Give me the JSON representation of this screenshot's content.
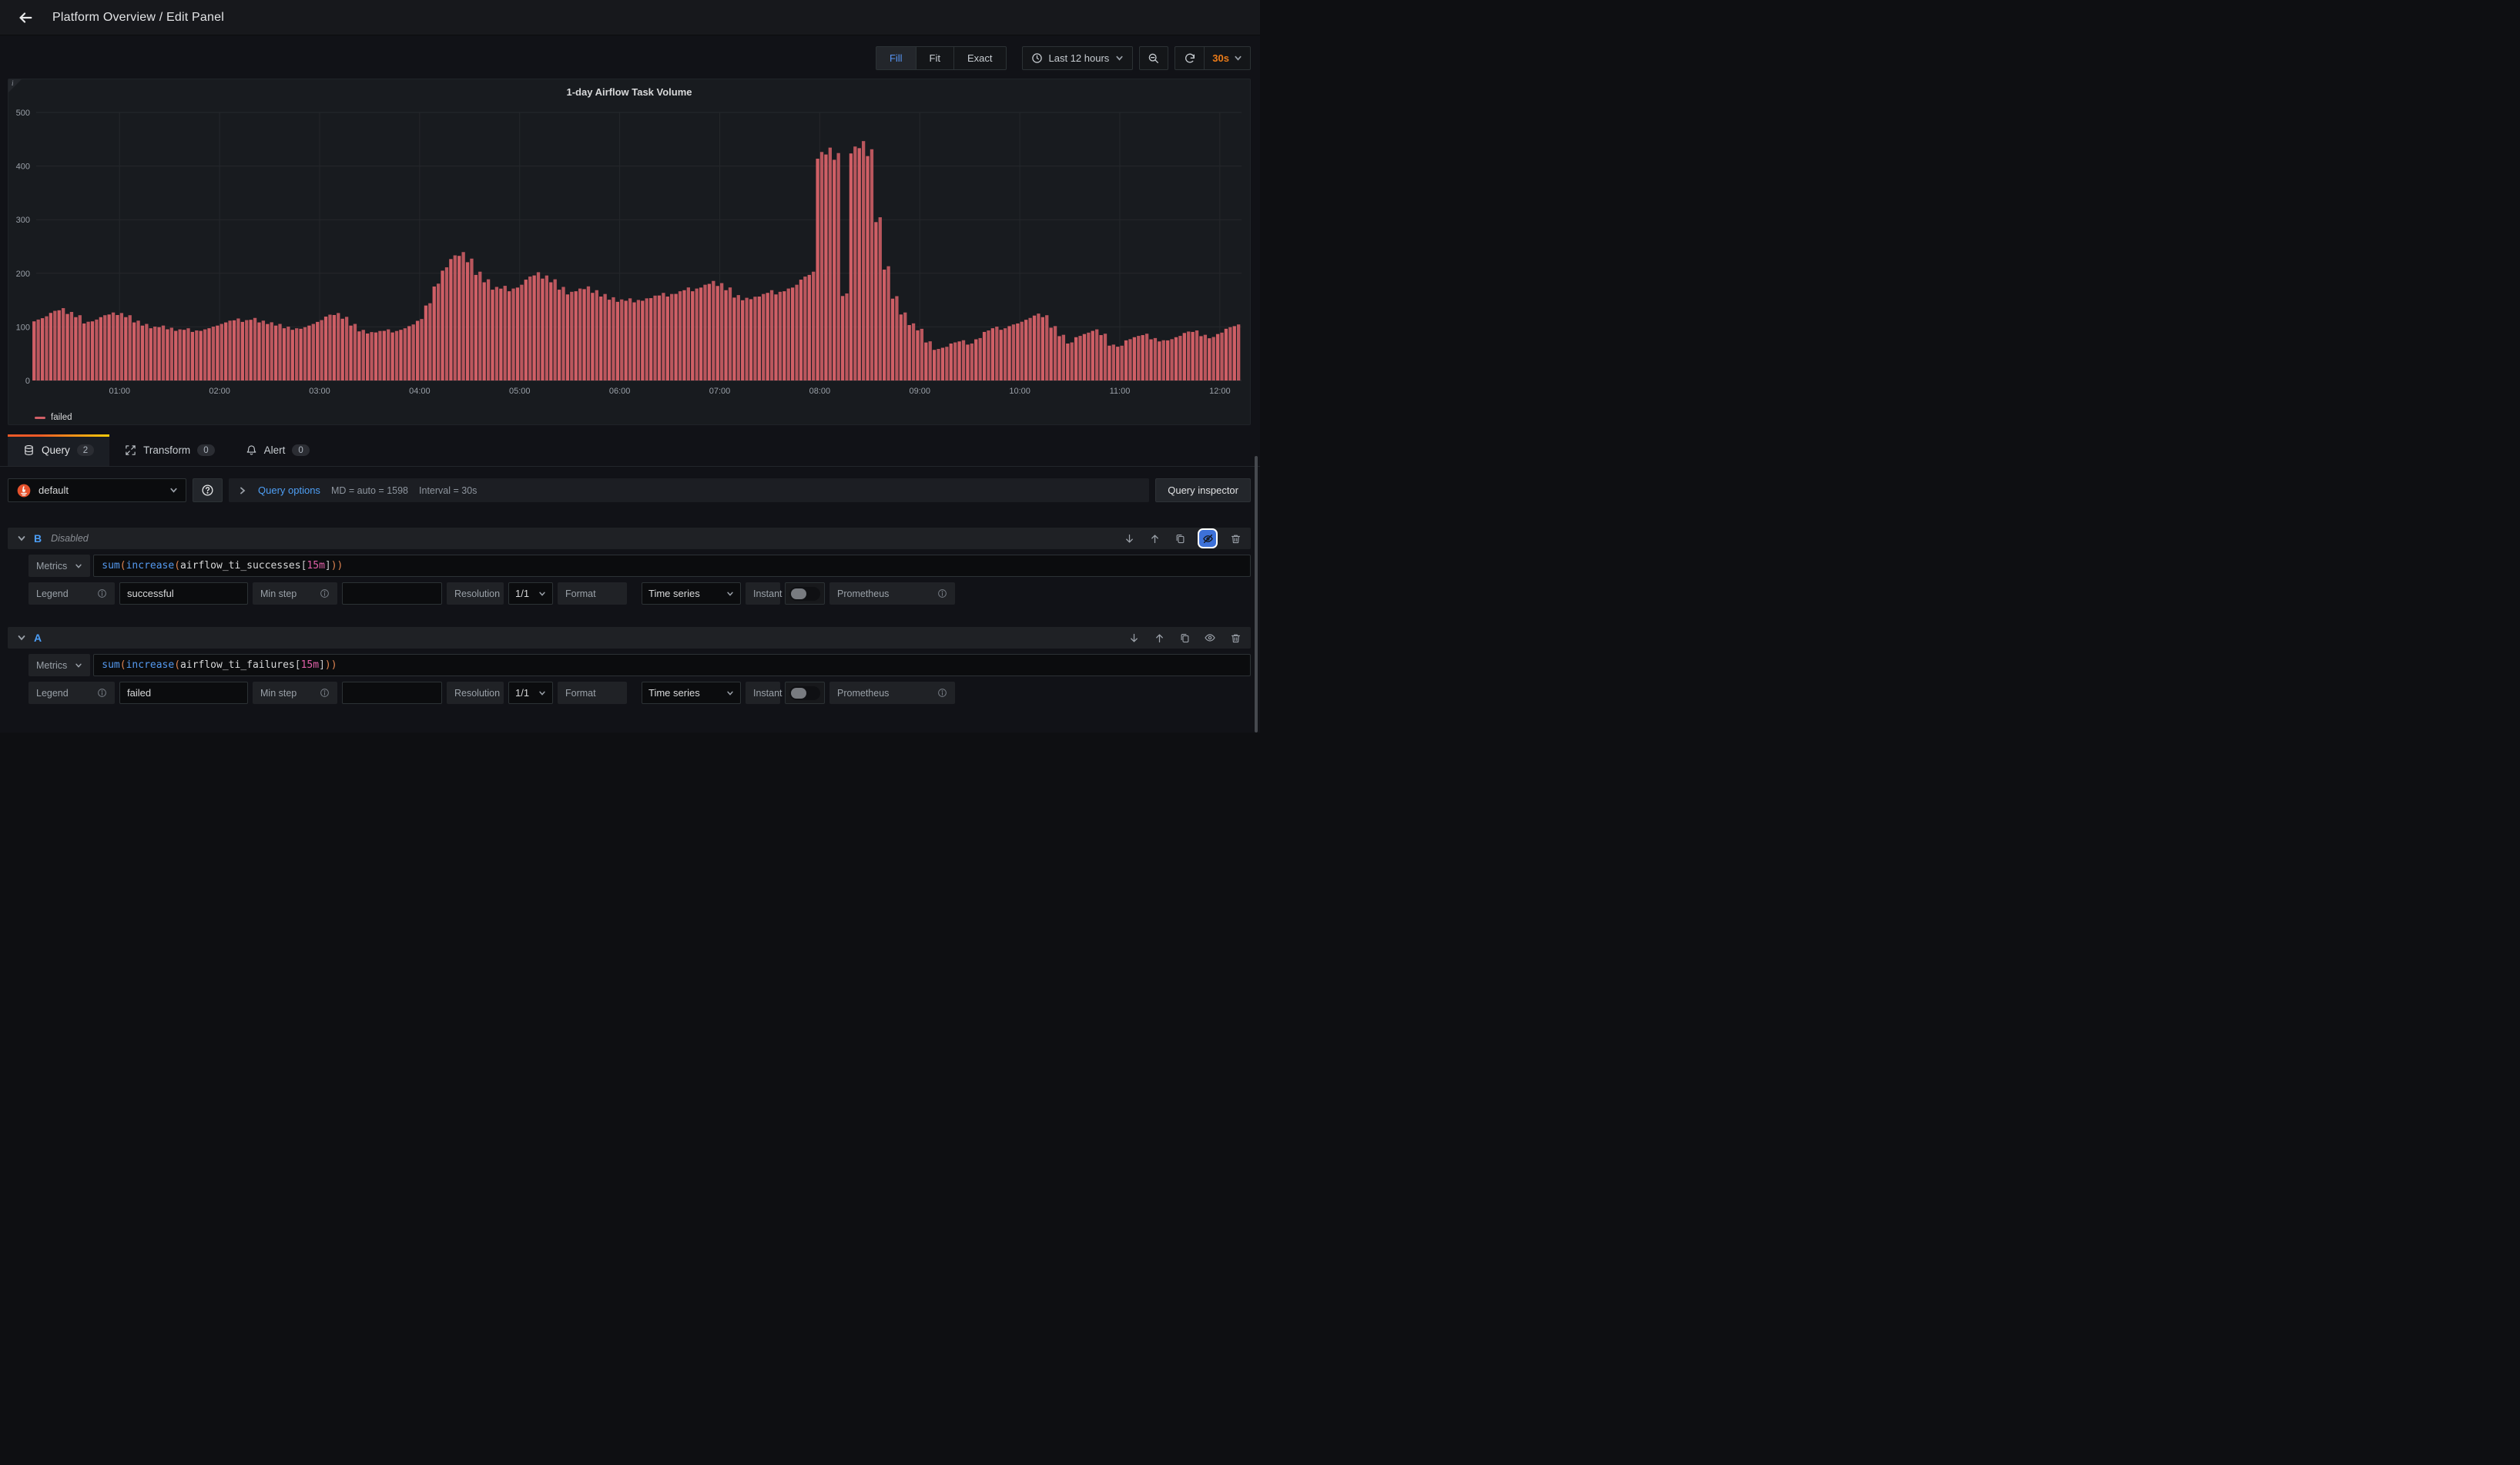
{
  "topbar": {
    "title": "Platform Overview / Edit Panel"
  },
  "toolbar": {
    "display_modes": [
      "Fill",
      "Fit",
      "Exact"
    ],
    "active_mode": "Fill",
    "time_range": "Last 12 hours",
    "refresh_interval": "30s"
  },
  "panel": {
    "title": "1-day Airflow Task Volume",
    "legend": "failed"
  },
  "chart_data": {
    "type": "bar",
    "title": "1-day Airflow Task Volume",
    "series_name": "failed",
    "bar_color": "#d05f66",
    "ylim": [
      0,
      500
    ],
    "y_ticks": [
      0,
      100,
      200,
      300,
      400,
      500
    ],
    "x_ticks": [
      "01:00",
      "02:00",
      "03:00",
      "04:00",
      "05:00",
      "06:00",
      "07:00",
      "08:00",
      "09:00",
      "10:00",
      "11:00",
      "12:00"
    ],
    "x_start_minutes": 10,
    "x_step_minutes": 5,
    "x_domain": [
      10,
      733
    ],
    "values": [
      112,
      118,
      128,
      133,
      126,
      120,
      108,
      112,
      120,
      125,
      124,
      120,
      110,
      104,
      99,
      101,
      97,
      94,
      96,
      92,
      94,
      99,
      104,
      110,
      114,
      111,
      115,
      110,
      107,
      104,
      99,
      96,
      98,
      104,
      111,
      121,
      124,
      117,
      104,
      93,
      89,
      91,
      94,
      91,
      96,
      103,
      113,
      142,
      178,
      208,
      230,
      236,
      224,
      200,
      186,
      172,
      174,
      169,
      176,
      191,
      199,
      193,
      186,
      172,
      163,
      169,
      173,
      166,
      159,
      153,
      149,
      151,
      148,
      151,
      156,
      161,
      159,
      164,
      171,
      169,
      176,
      183,
      179,
      171,
      157,
      152,
      154,
      159,
      166,
      163,
      169,
      176,
      191,
      200,
      420,
      428,
      418,
      160,
      430,
      440,
      425,
      300,
      210,
      155,
      125,
      105,
      95,
      72,
      58,
      62,
      70,
      74,
      68,
      78,
      92,
      99,
      96,
      103,
      108,
      115,
      123,
      120,
      100,
      84,
      70,
      82,
      88,
      94,
      86,
      66,
      64,
      76,
      82,
      86,
      78,
      74,
      76,
      82,
      90,
      92,
      84,
      80,
      88,
      98,
      103
    ]
  },
  "tabs": [
    {
      "label": "Query",
      "count": "2"
    },
    {
      "label": "Transform",
      "count": "0"
    },
    {
      "label": "Alert",
      "count": "0"
    }
  ],
  "datasource_row": {
    "name": "default",
    "query_options_label": "Query options",
    "md_text": "MD = auto = 1598",
    "interval_text": "Interval = 30s",
    "inspector_label": "Query inspector"
  },
  "option_labels": {
    "metrics": "Metrics",
    "legend": "Legend",
    "min_step": "Min step",
    "resolution": "Resolution",
    "format": "Format",
    "instant": "Instant",
    "datasource": "Prometheus"
  },
  "queries": [
    {
      "ref": "B",
      "state": "Disabled",
      "legend_value": "successful",
      "resolution_value": "1/1",
      "format_value": "Time series",
      "expr": [
        {
          "t": "sum",
          "c": "kw"
        },
        {
          "t": "(",
          "c": "pa"
        },
        {
          "t": "increase",
          "c": "kw"
        },
        {
          "t": "(",
          "c": "pa"
        },
        {
          "t": "airflow_ti_successes",
          "c": "id"
        },
        {
          "t": "[",
          "c": "br"
        },
        {
          "t": "15m",
          "c": "du"
        },
        {
          "t": "]",
          "c": "br"
        },
        {
          "t": "))",
          "c": "pa"
        }
      ]
    },
    {
      "ref": "A",
      "state": "",
      "legend_value": "failed",
      "resolution_value": "1/1",
      "format_value": "Time series",
      "expr": [
        {
          "t": "sum",
          "c": "kw"
        },
        {
          "t": "(",
          "c": "pa"
        },
        {
          "t": "increase",
          "c": "kw"
        },
        {
          "t": "(",
          "c": "pa"
        },
        {
          "t": "airflow_ti_failures",
          "c": "id"
        },
        {
          "t": "[",
          "c": "br"
        },
        {
          "t": "15m",
          "c": "du"
        },
        {
          "t": "]",
          "c": "br"
        },
        {
          "t": "))",
          "c": "pa"
        }
      ]
    }
  ]
}
